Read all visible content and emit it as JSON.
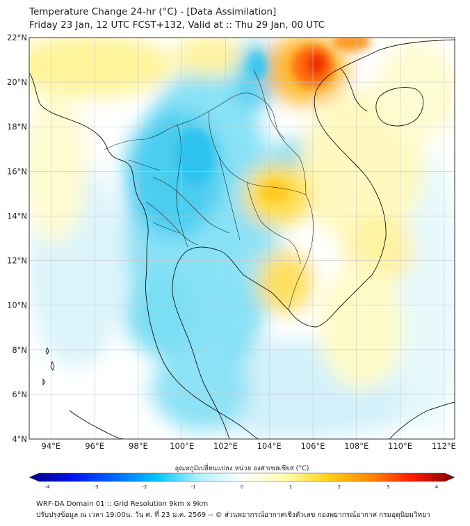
{
  "title": {
    "line1": "Temperature Change 24-hr (°C) - [Data Assimilation]",
    "line2": "Friday 23 Jan, 12 UTC FCST+132, Valid at :: Thu 29 Jan, 00 UTC"
  },
  "map": {
    "lat_range": [
      4,
      22
    ],
    "lon_range": [
      93,
      112.5
    ],
    "lat_ticks": [
      {
        "value": 4,
        "label": "4°N"
      },
      {
        "value": 6,
        "label": "6°N"
      },
      {
        "value": 8,
        "label": "8°N"
      },
      {
        "value": 10,
        "label": "10°N"
      },
      {
        "value": 12,
        "label": "12°N"
      },
      {
        "value": 14,
        "label": "14°N"
      },
      {
        "value": 16,
        "label": "16°N"
      },
      {
        "value": 18,
        "label": "18°N"
      },
      {
        "value": 20,
        "label": "20°N"
      },
      {
        "value": 22,
        "label": "22°N"
      }
    ],
    "lon_ticks": [
      {
        "value": 94,
        "label": "94°E"
      },
      {
        "value": 96,
        "label": "96°E"
      },
      {
        "value": 98,
        "label": "98°E"
      },
      {
        "value": 100,
        "label": "100°E"
      },
      {
        "value": 102,
        "label": "102°E"
      },
      {
        "value": 104,
        "label": "104°E"
      },
      {
        "value": 106,
        "label": "106°E"
      },
      {
        "value": 108,
        "label": "108°E"
      },
      {
        "value": 110,
        "label": "110°E"
      },
      {
        "value": 112,
        "label": "112°E"
      }
    ],
    "anomalies": [
      {
        "lon": 105.8,
        "lat": 20.9,
        "value": 3.0
      },
      {
        "lon": 106.5,
        "lat": 21.6,
        "value": 2.3
      },
      {
        "lon": 104.3,
        "lat": 15.2,
        "value": 0.9
      },
      {
        "lon": 103.8,
        "lat": 10.5,
        "value": 0.7
      },
      {
        "lon": 96.0,
        "lat": 21.2,
        "value": 0.6
      },
      {
        "lon": 100.5,
        "lat": 17.0,
        "value": -1.0
      },
      {
        "lon": 103.5,
        "lat": 20.5,
        "value": -0.9
      },
      {
        "lon": 99.0,
        "lat": 14.0,
        "value": -0.8
      },
      {
        "lon": 98.0,
        "lat": 9.0,
        "value": -0.7
      },
      {
        "lon": 104.2,
        "lat": 7.0,
        "value": -0.6
      }
    ]
  },
  "colorbar": {
    "label": "อุณหภูมิเปลี่ยนแปลง หน่วย องศาเซลเซียส (°C)",
    "ticks": [
      "-4",
      "-3",
      "-2",
      "-1",
      "0",
      "1",
      "2",
      "3",
      "4"
    ],
    "stops": [
      "#00007f",
      "#0011ee",
      "#0066ff",
      "#00c6ff",
      "#aef2ff",
      "#ffffff",
      "#ffffb0",
      "#ffd21a",
      "#ff8800",
      "#ff1a00",
      "#7f0000"
    ]
  },
  "footer": {
    "line1": "WRF-DA Domain 01 :: Grid Resolution 9km x 9km",
    "line2": "ปรับปรุงข้อมูล ณ เวลา 19:00น. วัน ศ. ที่ 23 ม.ค. 2569 -- © ส่วนพยากรณ์อากาศเชิงตัวเลข กองพยากรณ์อากาศ กรมอุตุนิยมวิทยา"
  }
}
